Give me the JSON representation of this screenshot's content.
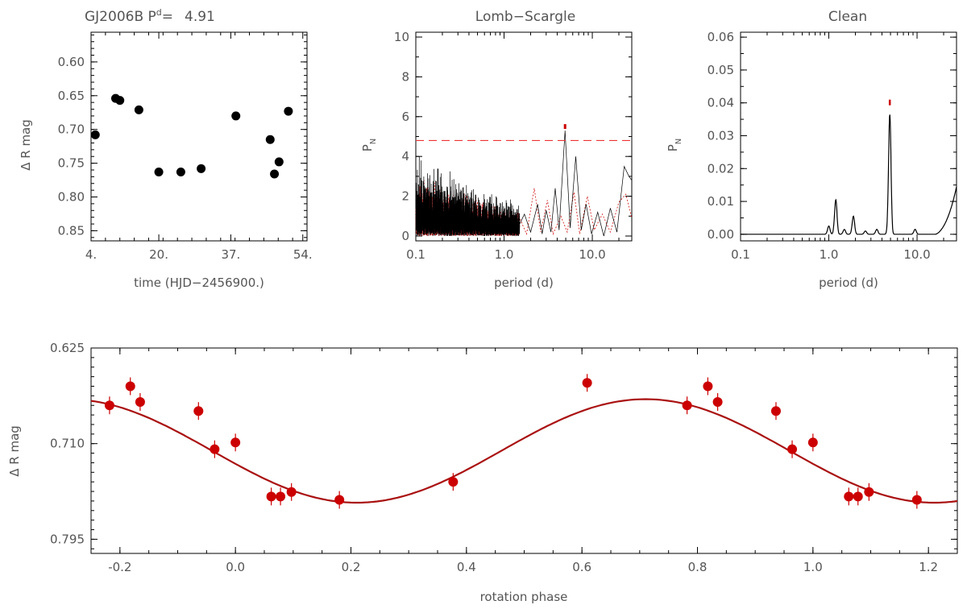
{
  "chart_data": [
    {
      "id": "timeseries",
      "type": "scatter",
      "title_prefix": "GJ2006B P",
      "title_sup": "d",
      "title_eq": "=",
      "title_value": "4.91",
      "xlabel": "time (HJD−2456900.)",
      "ylabel": "Δ R mag",
      "xlim": [
        4,
        55
      ],
      "ylim": [
        0.865,
        0.556
      ],
      "xticks": [
        4,
        20,
        37,
        54
      ],
      "xtick_labels": [
        "4.",
        "20.",
        "37.",
        "54."
      ],
      "yticks": [
        0.6,
        0.65,
        0.7,
        0.75,
        0.8,
        0.85
      ],
      "ytick_labels": [
        "0.60",
        "0.65",
        "0.70",
        "0.75",
        "0.80",
        "0.85"
      ],
      "points": [
        {
          "x": 5.0,
          "y": 0.708
        },
        {
          "x": 9.8,
          "y": 0.654
        },
        {
          "x": 10.8,
          "y": 0.657
        },
        {
          "x": 15.3,
          "y": 0.671
        },
        {
          "x": 20.0,
          "y": 0.763
        },
        {
          "x": 25.2,
          "y": 0.763
        },
        {
          "x": 30.0,
          "y": 0.758
        },
        {
          "x": 38.2,
          "y": 0.68
        },
        {
          "x": 46.3,
          "y": 0.715
        },
        {
          "x": 47.3,
          "y": 0.766
        },
        {
          "x": 48.4,
          "y": 0.748
        },
        {
          "x": 50.6,
          "y": 0.673
        }
      ]
    },
    {
      "id": "lomb",
      "type": "line",
      "title": "Lomb−Scargle",
      "xlabel": "period (d)",
      "ylabel": "P",
      "ylabel_sub": "N",
      "xscale": "log",
      "xlim": [
        0.1,
        28
      ],
      "ylim": [
        0,
        10
      ],
      "xticks": [
        0.1,
        1.0,
        10.0
      ],
      "xtick_labels": [
        "0.1",
        "1.0",
        "10.0"
      ],
      "yticks": [
        0,
        2,
        4,
        6,
        8,
        10
      ],
      "ytick_labels": [
        "0",
        "2",
        "4",
        "6",
        "8",
        "10"
      ],
      "fap_level": 4.8,
      "peak_period": 4.91,
      "peak_power": 5.3,
      "series_colors": {
        "periodogram": "#000000",
        "window": "#cc0000",
        "fap": "#ee3333"
      }
    },
    {
      "id": "clean",
      "type": "line",
      "title": "Clean",
      "xlabel": "period (d)",
      "ylabel": "P",
      "ylabel_sub": "N",
      "xscale": "log",
      "xlim": [
        0.1,
        28
      ],
      "ylim": [
        -0.002,
        0.0615
      ],
      "xticks": [
        0.1,
        1.0,
        10.0
      ],
      "xtick_labels": [
        "0.1",
        "1.0",
        "10.0"
      ],
      "yticks": [
        0.0,
        0.01,
        0.02,
        0.03,
        0.04,
        0.05,
        0.06
      ],
      "ytick_labels": [
        "0.00",
        "0.01",
        "0.02",
        "0.03",
        "0.04",
        "0.05",
        "0.06"
      ],
      "peaks": [
        {
          "x": 1.0,
          "y": 0.0025
        },
        {
          "x": 1.2,
          "y": 0.0105
        },
        {
          "x": 1.5,
          "y": 0.0015
        },
        {
          "x": 1.9,
          "y": 0.0055
        },
        {
          "x": 2.6,
          "y": 0.001
        },
        {
          "x": 3.5,
          "y": 0.0015
        },
        {
          "x": 4.91,
          "y": 0.0365
        },
        {
          "x": 9.5,
          "y": 0.0015
        }
      ],
      "peak_marker": {
        "x": 4.91,
        "y": 0.04
      }
    },
    {
      "id": "phase",
      "type": "scatter",
      "xlabel": "rotation phase",
      "ylabel": "Δ R mag",
      "xlim": [
        -0.25,
        1.25
      ],
      "ylim": [
        0.8076,
        0.625
      ],
      "xticks": [
        -0.2,
        0.0,
        0.2,
        0.4,
        0.6,
        0.8,
        1.0,
        1.2
      ],
      "xtick_labels": [
        "-0.2",
        "0.0",
        "0.2",
        "0.4",
        "0.6",
        "0.8",
        "1.0",
        "1.2"
      ],
      "yticks": [
        0.625,
        0.71,
        0.795
      ],
      "ytick_labels": [
        "0.625",
        "0.710",
        "0.795"
      ],
      "fit": {
        "mean": 0.7165,
        "amplitude": 0.046,
        "phase_of_min": 0.21
      },
      "points": [
        {
          "x": -0.218,
          "y": 0.676
        },
        {
          "x": -0.182,
          "y": 0.659
        },
        {
          "x": -0.165,
          "y": 0.673
        },
        {
          "x": -0.064,
          "y": 0.681
        },
        {
          "x": -0.036,
          "y": 0.715
        },
        {
          "x": 0.0,
          "y": 0.709
        },
        {
          "x": 0.062,
          "y": 0.757
        },
        {
          "x": 0.078,
          "y": 0.757
        },
        {
          "x": 0.097,
          "y": 0.753
        },
        {
          "x": 0.18,
          "y": 0.76
        },
        {
          "x": 0.377,
          "y": 0.744
        },
        {
          "x": 0.609,
          "y": 0.656
        },
        {
          "x": 0.782,
          "y": 0.676
        },
        {
          "x": 0.818,
          "y": 0.659
        },
        {
          "x": 0.835,
          "y": 0.673
        },
        {
          "x": 0.936,
          "y": 0.681
        },
        {
          "x": 0.964,
          "y": 0.715
        },
        {
          "x": 1.0,
          "y": 0.709
        },
        {
          "x": 1.062,
          "y": 0.757
        },
        {
          "x": 1.078,
          "y": 0.757
        },
        {
          "x": 1.097,
          "y": 0.753
        },
        {
          "x": 1.18,
          "y": 0.76
        }
      ],
      "point_color": "#cc0000",
      "fit_color": "#aa1111"
    }
  ]
}
